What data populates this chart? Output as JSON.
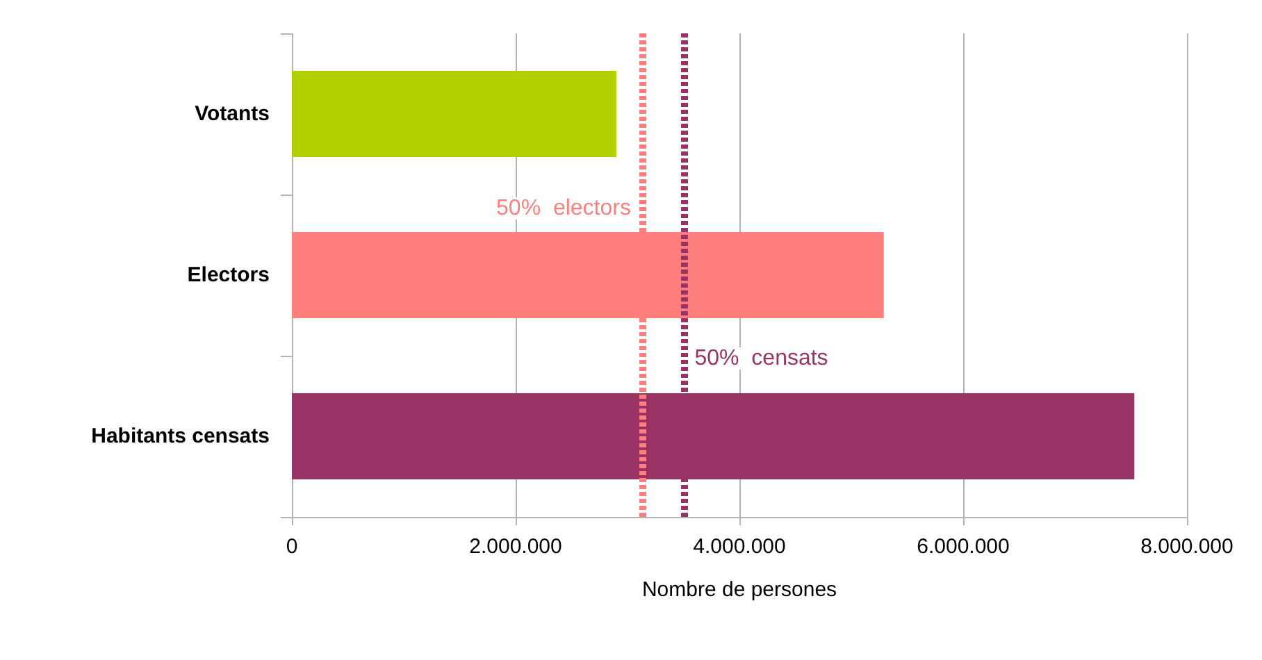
{
  "chart_data": {
    "type": "bar",
    "orientation": "horizontal",
    "xlabel": "Nombre de persones",
    "categories": [
      "Votants",
      "Electors",
      "Habitants censats"
    ],
    "values": [
      2900000,
      5290000,
      7530000
    ],
    "colors": [
      "#b2d000",
      "#ff7f7f",
      "#993366"
    ],
    "xlim": [
      0,
      8000000
    ],
    "xticks": [
      {
        "value": 0,
        "label": "0"
      },
      {
        "value": 2000000,
        "label": "2.000.000"
      },
      {
        "value": 4000000,
        "label": "4.000.000"
      },
      {
        "value": 6000000,
        "label": "6.000.000"
      },
      {
        "value": 8000000,
        "label": "8.000.000"
      }
    ],
    "grid": "x",
    "ref_lines": [
      {
        "axis": "x",
        "value": 3130000,
        "label": "50%  electors",
        "color": "#ff7f7f",
        "line_style": "dashed"
      },
      {
        "axis": "x",
        "value": 3500000,
        "label": "50%  censats",
        "color": "#993366",
        "line_style": "dashed"
      }
    ]
  }
}
